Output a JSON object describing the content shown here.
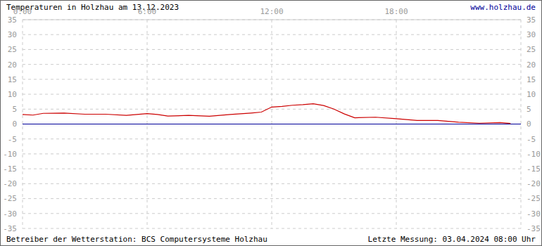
{
  "chart_data": {
    "type": "line",
    "title": "Temperaturen in Holzhau am 13.12.2023",
    "subtitle": "www.holzhau.de",
    "footer_left": "Betreiber der Wetterstation: BCS Computersysteme Holzhau",
    "footer_right": "Letzte Messung: 03.04.2024 08:00 Uhr",
    "x": [
      0,
      0.5,
      1,
      2,
      3,
      4,
      5,
      6,
      6.5,
      7,
      8,
      9,
      10,
      11,
      11.5,
      12,
      12.5,
      13,
      13.5,
      14,
      14.5,
      15,
      15.5,
      16,
      17,
      18,
      19,
      20,
      21,
      22,
      23,
      23.5
    ],
    "series": [
      {
        "name": "Temperatur",
        "color": "#cc0000",
        "values": [
          3.2,
          3.0,
          3.6,
          3.7,
          3.3,
          3.3,
          2.9,
          3.5,
          3.2,
          2.7,
          2.9,
          2.6,
          3.2,
          3.7,
          4.0,
          5.7,
          5.9,
          6.3,
          6.5,
          6.8,
          6.2,
          5.0,
          3.4,
          2.1,
          2.3,
          1.8,
          1.2,
          1.2,
          0.6,
          0.3,
          0.5,
          0.2
        ]
      }
    ],
    "xlim": [
      0,
      24
    ],
    "xticks": [
      {
        "value": 0,
        "label": "0:00"
      },
      {
        "value": 6,
        "label": "6:00"
      },
      {
        "value": 12,
        "label": "12:00"
      },
      {
        "value": 18,
        "label": "18:00"
      }
    ],
    "ylim": [
      -35,
      35
    ],
    "yticks": [
      -35,
      -30,
      -25,
      -20,
      -15,
      -10,
      -5,
      0,
      5,
      10,
      15,
      20,
      25,
      30,
      35
    ],
    "grid": true,
    "reference_line": {
      "value": 0,
      "color": "#000099"
    }
  }
}
